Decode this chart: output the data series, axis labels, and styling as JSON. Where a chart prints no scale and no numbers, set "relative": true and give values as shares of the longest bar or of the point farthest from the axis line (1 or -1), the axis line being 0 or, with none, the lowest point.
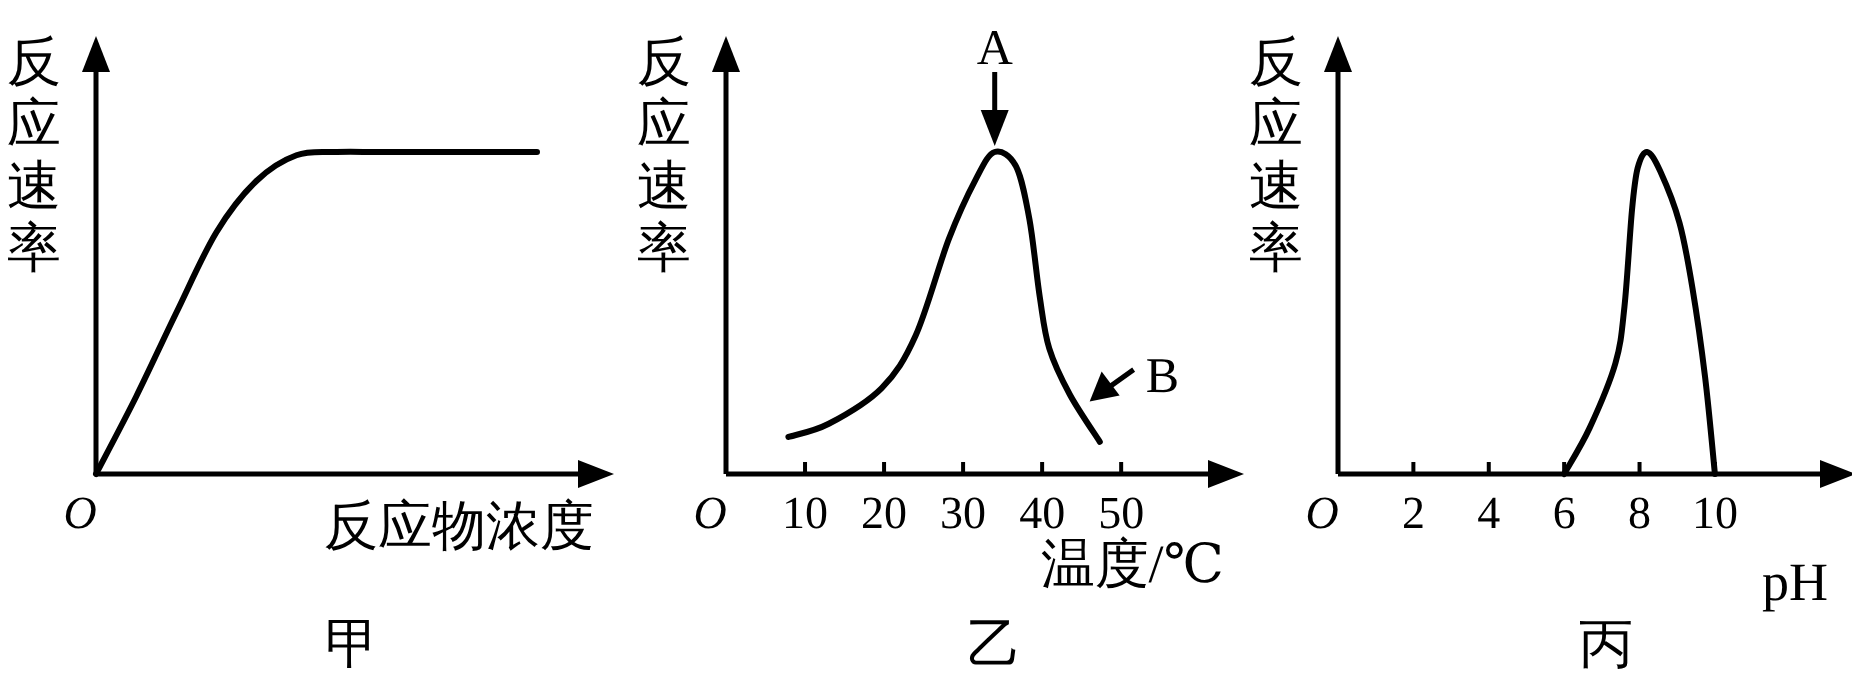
{
  "chart_data": [
    {
      "type": "line",
      "title": "甲",
      "ylabel": "反应速率",
      "xlabel": "反应物浓度",
      "relative": true,
      "color": "#000000",
      "categories": [
        null,
        null,
        null,
        null,
        null,
        null,
        null,
        null,
        null,
        null,
        null,
        null
      ],
      "values": [
        0,
        0.24,
        0.5,
        0.75,
        0.91,
        0.99,
        1,
        1,
        1,
        1,
        1,
        1
      ],
      "annotations": [
        "O"
      ]
    },
    {
      "type": "line",
      "title": "乙",
      "ylabel": "反应速率",
      "xlabel": "温度/℃",
      "relative": true,
      "color": "#000000",
      "xlim": [
        0,
        62
      ],
      "xticks": [
        {
          "value": 0,
          "label": "O"
        },
        10,
        20,
        30,
        40,
        50
      ],
      "x": [
        7.9,
        13,
        19.7,
        24,
        28.2,
        31.6,
        34,
        36.7,
        38.4,
        39.7,
        40.9,
        43.5,
        47.3
      ],
      "values": [
        0.115,
        0.156,
        0.267,
        0.43,
        0.73,
        0.915,
        1,
        0.955,
        0.79,
        0.55,
        0.39,
        0.247,
        0.1
      ],
      "annotations": [
        {
          "text": "A",
          "x": 34,
          "y": 1
        },
        {
          "text": "B",
          "x": 45,
          "y": 0.2
        }
      ]
    },
    {
      "type": "line",
      "title": "丙",
      "ylabel": "反应速率",
      "xlabel": "pH",
      "relative": true,
      "color": "#000000",
      "xlim": [
        0,
        13
      ],
      "xticks": [
        {
          "value": 0,
          "label": "O"
        },
        2,
        4,
        6,
        8,
        10
      ],
      "x": [
        6,
        6.68,
        7.36,
        7.6,
        7.8,
        7.95,
        8.2,
        8.55,
        9.06,
        9.4,
        9.74,
        10
      ],
      "values": [
        0,
        0.144,
        0.344,
        0.52,
        0.82,
        0.95,
        1,
        0.94,
        0.78,
        0.58,
        0.3,
        0
      ]
    }
  ]
}
